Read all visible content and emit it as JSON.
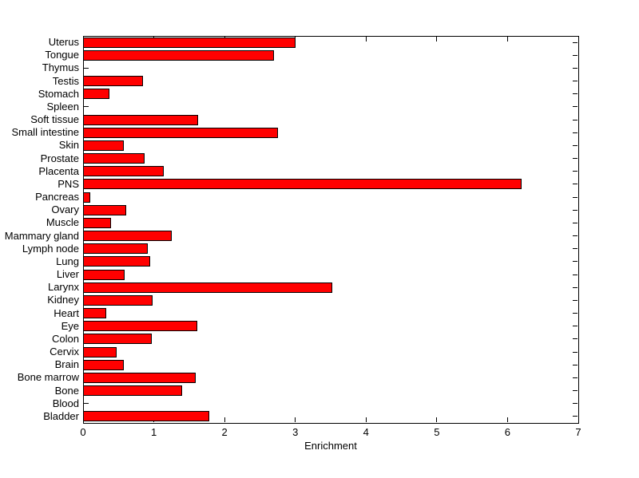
{
  "figure": {
    "background_color": "#ffffff",
    "axis_color": "#000000",
    "text_color": "#000000"
  },
  "chart_data": {
    "type": "bar",
    "orientation": "horizontal",
    "title": "",
    "xlabel": "Enrichment",
    "ylabel": "",
    "xlim": [
      0,
      7
    ],
    "xticks": [
      "0",
      "1",
      "2",
      "3",
      "4",
      "5",
      "6",
      "7"
    ],
    "grid": false,
    "legend": null,
    "bar_color": "#ff0000",
    "bar_border_color": "#000000",
    "categories": [
      "Uterus",
      "Tongue",
      "Thymus",
      "Testis",
      "Stomach",
      "Spleen",
      "Soft tissue",
      "Small intestine",
      "Skin",
      "Prostate",
      "Placenta",
      "PNS",
      "Pancreas",
      "Ovary",
      "Muscle",
      "Mammary gland",
      "Lymph node",
      "Lung",
      "Liver",
      "Larynx",
      "Kidney",
      "Heart",
      "Eye",
      "Colon",
      "Cervix",
      "Brain",
      "Bone marrow",
      "Bone",
      "Blood",
      "Bladder"
    ],
    "values": [
      3.0,
      2.7,
      0,
      0.85,
      0.37,
      0,
      1.63,
      2.75,
      0.58,
      0.87,
      1.14,
      6.2,
      0.1,
      0.61,
      0.39,
      1.25,
      0.91,
      0.95,
      0.59,
      3.52,
      0.98,
      0.33,
      1.61,
      0.97,
      0.47,
      0.58,
      1.59,
      1.4,
      0,
      1.78
    ]
  }
}
